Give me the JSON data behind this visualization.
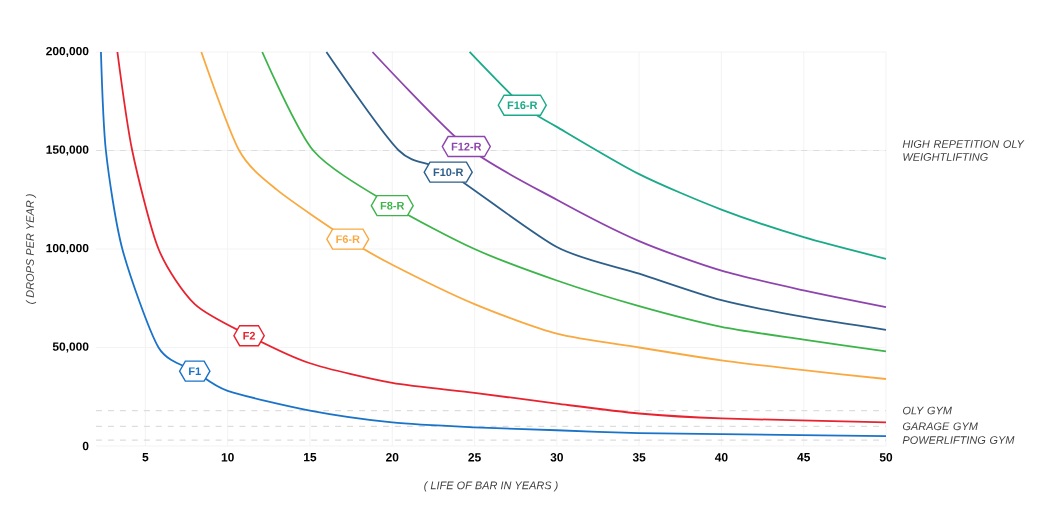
{
  "chart_data": {
    "type": "line",
    "xlabel": "( LIFE OF BAR IN YEARS )",
    "ylabel": "( DROPS PER YEAR )",
    "xlim": [
      2,
      50
    ],
    "ylim": [
      0,
      200000
    ],
    "xticks": [
      5,
      10,
      15,
      20,
      25,
      30,
      35,
      40,
      45,
      50
    ],
    "yticks": [
      0,
      {
        "value": 50000,
        "label": "50,000"
      },
      {
        "value": 100000,
        "label": "100,000"
      },
      {
        "value": 150000,
        "label": "150,000"
      },
      {
        "value": 200000,
        "label": "200,000"
      }
    ],
    "grid": true,
    "marker": "none",
    "series": [
      {
        "name": "F1",
        "color": "#1a73c8",
        "x": [
          2.3,
          2.6,
          3.6,
          5.8,
          8,
          10,
          15,
          20,
          25,
          30,
          35,
          40,
          50
        ],
        "values": [
          200000,
          150000,
          100000,
          50000,
          38000,
          28000,
          18000,
          12000,
          9500,
          8000,
          6500,
          6000,
          5000
        ]
      },
      {
        "name": "F2",
        "color": "#e8232f",
        "x": [
          3.3,
          4.2,
          5.8,
          8,
          11.3,
          15,
          20,
          25,
          30,
          35,
          40,
          50
        ],
        "values": [
          200000,
          150000,
          100000,
          72000,
          56000,
          42000,
          32000,
          27000,
          21500,
          16500,
          14000,
          12000
        ]
      },
      {
        "name": "F6-R",
        "color": "#f9a940",
        "x": [
          8.4,
          10.7,
          13,
          17.3,
          20,
          25,
          30,
          35,
          40,
          45,
          50
        ],
        "values": [
          200000,
          150000,
          130000,
          105000,
          92000,
          72000,
          57000,
          50000,
          43500,
          38500,
          34000
        ]
      },
      {
        "name": "F8-R",
        "color": "#3cb44a",
        "x": [
          12.1,
          15.2,
          20,
          25,
          30,
          35,
          40,
          45,
          50
        ],
        "values": [
          200000,
          150000,
          122000,
          100000,
          84000,
          71000,
          60500,
          54000,
          48000
        ]
      },
      {
        "name": "F10-R",
        "color": "#2e5f8a",
        "x": [
          16,
          20.4,
          23.4,
          30,
          35,
          40,
          45,
          50
        ],
        "values": [
          200000,
          150000,
          139000,
          101000,
          87500,
          74000,
          65500,
          59000
        ]
      },
      {
        "name": "F12-R",
        "color": "#8e44ad",
        "x": [
          18.8,
          24.5,
          30,
          35,
          40,
          45,
          50
        ],
        "values": [
          200000,
          152000,
          125000,
          104000,
          89000,
          79000,
          70500
        ]
      },
      {
        "name": "F16-R",
        "color": "#1aaa8a",
        "x": [
          24.7,
          27.9,
          30,
          35,
          40,
          45,
          50
        ],
        "values": [
          200000,
          173000,
          162000,
          138000,
          120000,
          106000,
          95000
        ]
      }
    ],
    "ref_lines": [
      {
        "axis": "y",
        "value": 150000,
        "label": "HIGH REPETITION OLY WEIGHTLIFTING",
        "color": "#dddddd",
        "line_style": "dashed"
      },
      {
        "axis": "y",
        "value": 18000,
        "label": "OLY GYM",
        "color": "#dddddd",
        "line_style": "dashed"
      },
      {
        "axis": "y",
        "value": 10000,
        "label": "GARAGE GYM",
        "color": "#dddddd",
        "line_style": "dashed"
      },
      {
        "axis": "y",
        "value": 3000,
        "label": "POWERLIFTING GYM",
        "color": "#dddddd",
        "line_style": "dashed"
      }
    ]
  }
}
